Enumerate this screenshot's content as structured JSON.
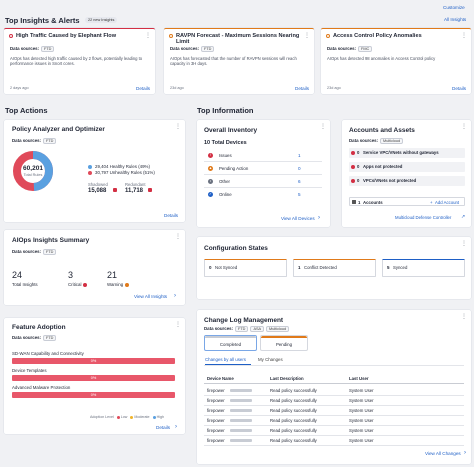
{
  "header": {
    "title": "Top Insights & Alerts",
    "badge": "22 new Insights",
    "customize": "Customize",
    "all_insights": "All Insights"
  },
  "insights": [
    {
      "title": "High Traffic Caused by Elephant Flow",
      "ds_label": "Data sources:",
      "ds": "FTD",
      "desc": "AIOps has detected high traffic caused by 2 flows, potentially leading to performance issues in Snort cores.",
      "time": "2 days ago",
      "details": "Details",
      "color": "#d32f43"
    },
    {
      "title": "RAVPN Forecast - Maximum Sessions Nearing Limit",
      "ds_label": "Data sources:",
      "ds": "FTD",
      "desc": "AIOps has forecasted that the number of RAVPN sessions will reach capacity in 3H days.",
      "time": "23d ago",
      "details": "Details",
      "color": "#e07a1a"
    },
    {
      "title": "Access Control Policy Anomalies",
      "ds_label": "Data sources:",
      "ds": "FMC",
      "desc": "AIOps has detected 98 anomalies in Access Control policy",
      "time": "23d ago",
      "details": "Details",
      "color": "#e07a1a"
    }
  ],
  "top_actions": {
    "title": "Top Actions"
  },
  "policy": {
    "title": "Policy Analyzer and Optimizer",
    "ds_label": "Data sources:",
    "ds": "FTD",
    "total": "60,201",
    "total_label": "Total Rules",
    "healthy": "29,404 Healthy Rules (49%)",
    "unhealthy": "30,797 Unhealthy Rules (51%)",
    "shadowed_label": "Shadowed",
    "shadowed": "15,088",
    "redundant_label": "Redundant",
    "redundant": "11,718",
    "details": "Details",
    "healthy_color": "#5aa0e0",
    "unhealthy_color": "#e04a5a",
    "healthy_fraction": 0.49
  },
  "aiops": {
    "title": "AIOps Insights Summary",
    "ds_label": "Data sources:",
    "ds": "FTD",
    "total": "24",
    "total_label": "Total Insights",
    "critical": "3",
    "critical_label": "Critical",
    "warning": "21",
    "warning_label": "Warning",
    "view_all": "View All Insights"
  },
  "feature": {
    "title": "Feature Adoption",
    "ds_label": "Data sources:",
    "ds": "FTD",
    "items": [
      {
        "label": "SD-WAN Capability and Connectivity",
        "value": "0%"
      },
      {
        "label": "Device Templates",
        "value": "0%"
      },
      {
        "label": "Advanced Malware Protection",
        "value": "0%"
      }
    ],
    "legend_title": "Adoption Level",
    "legend": [
      "Low",
      "Moderate",
      "High"
    ],
    "details": "Details"
  },
  "top_info": {
    "title": "Top Information"
  },
  "inventory": {
    "title": "Overall Inventory",
    "total": "10 Total Devices",
    "rows": [
      {
        "label": "Issues",
        "value": "1"
      },
      {
        "label": "Pending Action",
        "value": "0"
      },
      {
        "label": "Other",
        "value": "6"
      },
      {
        "label": "Online",
        "value": "5"
      }
    ],
    "view_all": "View All Devices"
  },
  "accounts": {
    "title": "Accounts and Assets",
    "ds_label": "Data sources:",
    "ds": "Multicloud",
    "alerts": [
      {
        "count": "0",
        "label": "Service VPC/VNets without gateways"
      },
      {
        "count": "0",
        "label": "Apps not protected"
      },
      {
        "count": "0",
        "label": "VPCs/VNets not protected"
      }
    ],
    "accounts_count": "1",
    "accounts_label": "Accounts",
    "add_account": "Add Account",
    "defense_link": "Multicloud Defense Controller"
  },
  "config": {
    "title": "Configuration States",
    "items": [
      {
        "value": "0",
        "label": "Not Synced",
        "color": "#e07a1a"
      },
      {
        "value": "1",
        "label": "Conflict Detected",
        "color": "#e07a1a"
      },
      {
        "value": "5",
        "label": "Synced",
        "color": "#1e5fc6"
      }
    ]
  },
  "changelog": {
    "title": "Change Log Management",
    "ds_label": "Data sources:",
    "ds": [
      "FTD",
      "ASA",
      "Multicloud"
    ],
    "completed": "Completed",
    "pending": "Pending",
    "tab_users": "Changes by all users",
    "tab_mine": "My Changes",
    "columns": [
      "Device Name",
      "Last Description",
      "Last User"
    ],
    "rows": [
      {
        "device": "firepower",
        "desc": "Read policy successfully",
        "user": "System User"
      },
      {
        "device": "firepower",
        "desc": "Read policy successfully",
        "user": "System User"
      },
      {
        "device": "firepower",
        "desc": "Read policy successfully",
        "user": "System User"
      },
      {
        "device": "firepower",
        "desc": "Read policy successfully",
        "user": "System User"
      },
      {
        "device": "firepower",
        "desc": "Read policy successfully",
        "user": "System User"
      },
      {
        "device": "firepower",
        "desc": "Read policy successfully",
        "user": "System User"
      }
    ],
    "view_all": "View All Changes"
  }
}
